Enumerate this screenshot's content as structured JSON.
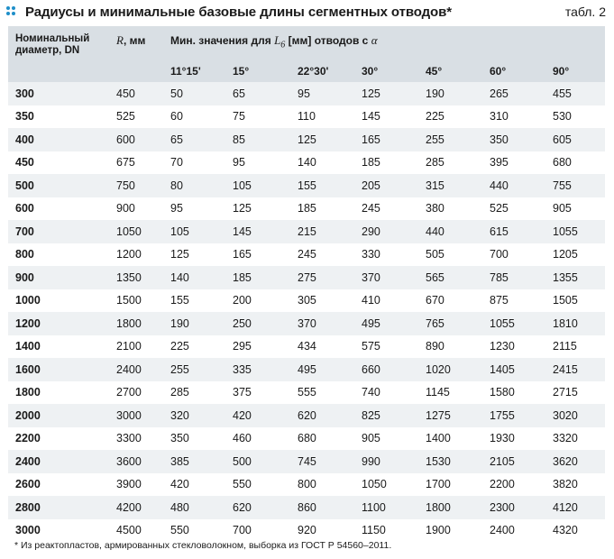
{
  "header": {
    "title": "Радиусы и минимальные базовые длины сегментных отводов*",
    "table_label": "табл. 2",
    "accent_color": "#1f8fc9"
  },
  "table": {
    "head": {
      "dn_line1": "Номинальный",
      "dn_line2": "диаметр, DN",
      "r_symbol": "R",
      "r_unit": ", мм",
      "min_prefix": "Мин. значения для ",
      "min_symbol": "L",
      "min_subscript": "6",
      "min_suffix": " [мм] отводов с ",
      "min_alpha": "α",
      "angles": [
        "11°15'",
        "15°",
        "22°30'",
        "30°",
        "45°",
        "60°",
        "90°"
      ]
    },
    "rows": [
      [
        "300",
        "450",
        "50",
        "65",
        "95",
        "125",
        "190",
        "265",
        "455"
      ],
      [
        "350",
        "525",
        "60",
        "75",
        "110",
        "145",
        "225",
        "310",
        "530"
      ],
      [
        "400",
        "600",
        "65",
        "85",
        "125",
        "165",
        "255",
        "350",
        "605"
      ],
      [
        "450",
        "675",
        "70",
        "95",
        "140",
        "185",
        "285",
        "395",
        "680"
      ],
      [
        "500",
        "750",
        "80",
        "105",
        "155",
        "205",
        "315",
        "440",
        "755"
      ],
      [
        "600",
        "900",
        "95",
        "125",
        "185",
        "245",
        "380",
        "525",
        "905"
      ],
      [
        "700",
        "1050",
        "105",
        "145",
        "215",
        "290",
        "440",
        "615",
        "1055"
      ],
      [
        "800",
        "1200",
        "125",
        "165",
        "245",
        "330",
        "505",
        "700",
        "1205"
      ],
      [
        "900",
        "1350",
        "140",
        "185",
        "275",
        "370",
        "565",
        "785",
        "1355"
      ],
      [
        "1000",
        "1500",
        "155",
        "200",
        "305",
        "410",
        "670",
        "875",
        "1505"
      ],
      [
        "1200",
        "1800",
        "190",
        "250",
        "370",
        "495",
        "765",
        "1055",
        "1810"
      ],
      [
        "1400",
        "2100",
        "225",
        "295",
        "434",
        "575",
        "890",
        "1230",
        "2115"
      ],
      [
        "1600",
        "2400",
        "255",
        "335",
        "495",
        "660",
        "1020",
        "1405",
        "2415"
      ],
      [
        "1800",
        "2700",
        "285",
        "375",
        "555",
        "740",
        "1145",
        "1580",
        "2715"
      ],
      [
        "2000",
        "3000",
        "320",
        "420",
        "620",
        "825",
        "1275",
        "1755",
        "3020"
      ],
      [
        "2200",
        "3300",
        "350",
        "460",
        "680",
        "905",
        "1400",
        "1930",
        "3320"
      ],
      [
        "2400",
        "3600",
        "385",
        "500",
        "745",
        "990",
        "1530",
        "2105",
        "3620"
      ],
      [
        "2600",
        "3900",
        "420",
        "550",
        "800",
        "1050",
        "1700",
        "2200",
        "3820"
      ],
      [
        "2800",
        "4200",
        "480",
        "620",
        "860",
        "1100",
        "1800",
        "2300",
        "4120"
      ],
      [
        "3000",
        "4500",
        "550",
        "700",
        "920",
        "1150",
        "1900",
        "2400",
        "4320"
      ]
    ]
  },
  "footnote": "* Из реактопластов, армированных стекловолокном, выборка из ГОСТ Р 54560–2011."
}
